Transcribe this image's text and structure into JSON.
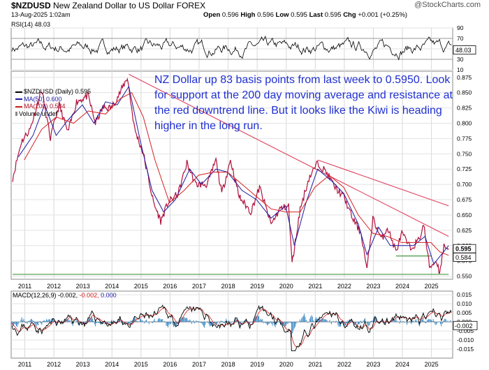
{
  "header": {
    "symbol": "$NZDUSD",
    "name": "New Zealand Dollar to US Dollar",
    "exchange": "FOREX",
    "datetime": "13-Aug-2025 1:02am",
    "open_label": "Open",
    "open": "0.596",
    "high_label": "High",
    "high": "0.596",
    "low_label": "Low",
    "low": "0.595",
    "last_label": "Last",
    "last": "0.595",
    "chg_label": "Chg",
    "chg": "+0.001 (+0.25%)",
    "logo": "@StockCharts.com"
  },
  "annotation": "NZ Dollar up 83 basis points from last week to 0.5950. Look for support at the 200 day moving average and resistance at the red downtrend line. But it looks like the Kiwi is heading higher in the long run.",
  "legend": {
    "price": "$NZDUSD (Daily) 0.595",
    "ma50": "MA(50) 0.600",
    "ma200": "MA(200) 0.584",
    "volume": "Volume undef"
  },
  "rsi": {
    "label": "RSI(14) 48.03",
    "badge": "48.03"
  },
  "macd": {
    "label_prefix": "MACD(12,26,9)",
    "v1": "-0.002,",
    "v2": "-0.002,",
    "v3": "0.000",
    "badge": "-0.002"
  },
  "price_badges": {
    "last": "0.595",
    "ma200": "0.584"
  },
  "colors": {
    "price": "#b0103c",
    "ma50": "#1a1aa0",
    "ma200": "#d42020",
    "trendline": "#e04060",
    "support": "#2e8b2e",
    "annotation": "#2030d0"
  },
  "chart_data": [
    {
      "type": "line",
      "title": "RSI(14)",
      "ylim": [
        10,
        90
      ],
      "yticks": [
        "90",
        "70",
        "50",
        "30",
        "10"
      ]
    },
    {
      "type": "line",
      "title": "$NZDUSD (Daily)",
      "x_ticks": [
        "2011",
        "2012",
        "2013",
        "2014",
        "2015",
        "2016",
        "2017",
        "2018",
        "2019",
        "2020",
        "2021",
        "2022",
        "2023",
        "2024",
        "2025"
      ],
      "ylim": [
        0.545,
        0.885
      ],
      "yticks": [
        "0.875",
        "0.850",
        "0.825",
        "0.800",
        "0.775",
        "0.750",
        "0.725",
        "0.700",
        "0.675",
        "0.650",
        "0.625",
        "0.600",
        "0.575",
        "0.550"
      ],
      "series": [
        {
          "name": "$NZDUSD",
          "x": [
            2010.6,
            2010.9,
            2011.2,
            2011.6,
            2011.9,
            2012.2,
            2012.5,
            2012.8,
            2013.2,
            2013.45,
            2013.7,
            2014.0,
            2014.3,
            2014.55,
            2014.8,
            2015.1,
            2015.45,
            2015.7,
            2015.95,
            2016.3,
            2016.6,
            2016.9,
            2017.3,
            2017.6,
            2017.8,
            2018.1,
            2018.4,
            2018.8,
            2019.1,
            2019.5,
            2019.8,
            2020.1,
            2020.22,
            2020.5,
            2020.8,
            2021.1,
            2021.4,
            2021.7,
            2022.0,
            2022.3,
            2022.6,
            2022.8,
            2023.0,
            2023.3,
            2023.5,
            2023.8,
            2024.0,
            2024.3,
            2024.6,
            2024.75,
            2024.95,
            2025.2,
            2025.3,
            2025.45,
            2025.61
          ],
          "y": [
            0.71,
            0.77,
            0.79,
            0.855,
            0.775,
            0.83,
            0.785,
            0.835,
            0.845,
            0.8,
            0.825,
            0.825,
            0.85,
            0.875,
            0.79,
            0.75,
            0.67,
            0.64,
            0.67,
            0.685,
            0.735,
            0.7,
            0.7,
            0.74,
            0.685,
            0.74,
            0.68,
            0.655,
            0.695,
            0.635,
            0.66,
            0.665,
            0.57,
            0.66,
            0.71,
            0.735,
            0.72,
            0.695,
            0.68,
            0.645,
            0.62,
            0.56,
            0.645,
            0.61,
            0.63,
            0.59,
            0.62,
            0.595,
            0.61,
            0.635,
            0.565,
            0.575,
            0.555,
            0.6,
            0.595
          ]
        },
        {
          "name": "MA(50)",
          "x": [
            2010.8,
            2011.3,
            2011.7,
            2012.1,
            2012.5,
            2013.0,
            2013.4,
            2013.8,
            2014.2,
            2014.6,
            2015.0,
            2015.4,
            2015.8,
            2016.2,
            2016.7,
            2017.1,
            2017.6,
            2018.0,
            2018.5,
            2019.0,
            2019.5,
            2020.0,
            2020.3,
            2020.7,
            2021.1,
            2021.6,
            2022.0,
            2022.5,
            2022.8,
            2023.2,
            2023.6,
            2024.0,
            2024.4,
            2024.8,
            2025.1,
            2025.61
          ],
          "y": [
            0.745,
            0.78,
            0.83,
            0.78,
            0.805,
            0.83,
            0.8,
            0.835,
            0.83,
            0.86,
            0.77,
            0.69,
            0.655,
            0.675,
            0.725,
            0.7,
            0.725,
            0.72,
            0.69,
            0.675,
            0.645,
            0.665,
            0.6,
            0.67,
            0.725,
            0.705,
            0.685,
            0.635,
            0.585,
            0.63,
            0.6,
            0.6,
            0.6,
            0.615,
            0.57,
            0.6
          ]
        },
        {
          "name": "MA(200)",
          "x": [
            2011.0,
            2011.6,
            2012.1,
            2012.7,
            2013.2,
            2013.8,
            2014.3,
            2014.7,
            2015.1,
            2015.5,
            2016.0,
            2016.5,
            2017.0,
            2017.5,
            2018.0,
            2018.5,
            2019.0,
            2019.5,
            2020.0,
            2020.5,
            2021.0,
            2021.5,
            2022.0,
            2022.5,
            2023.0,
            2023.5,
            2024.0,
            2024.5,
            2025.0,
            2025.3,
            2025.61
          ],
          "y": [
            0.74,
            0.79,
            0.81,
            0.8,
            0.82,
            0.815,
            0.84,
            0.85,
            0.81,
            0.74,
            0.67,
            0.69,
            0.715,
            0.72,
            0.72,
            0.7,
            0.68,
            0.66,
            0.655,
            0.655,
            0.695,
            0.715,
            0.695,
            0.65,
            0.62,
            0.615,
            0.605,
            0.605,
            0.605,
            0.59,
            0.584
          ]
        }
      ],
      "trendlines": [
        {
          "name": "downtrend",
          "x": [
            2014.6,
            2025.61
          ],
          "y": [
            0.88,
            0.615
          ]
        },
        {
          "name": "upper trend",
          "x": [
            2021.1,
            2025.61
          ],
          "y": [
            0.74,
            0.665
          ]
        },
        {
          "name": "horizontal support",
          "x": [
            2010.6,
            2025.61
          ],
          "y": [
            0.553,
            0.553
          ]
        },
        {
          "name": "2023 support",
          "x": [
            2023.8,
            2025.0
          ],
          "y": [
            0.583,
            0.583
          ]
        }
      ]
    },
    {
      "type": "line",
      "title": "MACD(12,26,9)",
      "x_ticks": [
        "2011",
        "2012",
        "2013",
        "2014",
        "2015",
        "2016",
        "2017",
        "2018",
        "2019",
        "2020",
        "2021",
        "2022",
        "2023",
        "2024",
        "2025"
      ],
      "ylim": [
        -0.02,
        0.017
      ],
      "yticks": [
        "0.015",
        "0.010",
        "0.005",
        "0.000",
        "-0.005",
        "-0.010",
        "-0.015"
      ]
    }
  ]
}
